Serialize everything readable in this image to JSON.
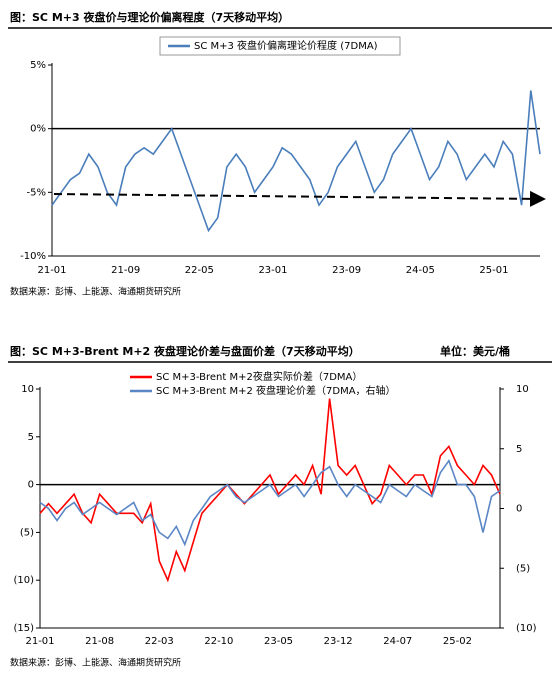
{
  "chart_data": [
    {
      "type": "line",
      "title": "图：SC M+3 夜盘价与理论价偏离程度（7天移动平均）",
      "source": "数据来源：彭博、上能源、海通期货研究所",
      "categories": [
        "21-01",
        null,
        null,
        null,
        null,
        null,
        null,
        null,
        "21-09",
        null,
        null,
        null,
        null,
        null,
        null,
        null,
        "22-05",
        null,
        null,
        null,
        null,
        null,
        null,
        null,
        "23-01",
        null,
        null,
        null,
        null,
        null,
        null,
        null,
        "23-09",
        null,
        null,
        null,
        null,
        null,
        null,
        null,
        "24-05",
        null,
        null,
        null,
        null,
        null,
        null,
        null,
        "25-01",
        null,
        null,
        null,
        null,
        null
      ],
      "ylim": [
        -10,
        5
      ],
      "yticks": [
        {
          "value": 5,
          "label": "5%"
        },
        {
          "value": 0,
          "label": "0%"
        },
        {
          "value": -5,
          "label": "-5%"
        },
        {
          "value": -10,
          "label": "-10%"
        }
      ],
      "series": [
        {
          "name": "SC M+3 夜盘价偏离理论价程度 (7DMA)",
          "color": "#4a7ebb",
          "values": [
            -6,
            -5,
            -4,
            -3.5,
            -2,
            -3,
            -5,
            -6,
            -3,
            -2,
            -1.5,
            -2,
            -1,
            0,
            -2,
            -4,
            -6,
            -8,
            -7,
            -3,
            -2,
            -3,
            -5,
            -4,
            -3,
            -1.5,
            -2,
            -3,
            -4,
            -6,
            -5,
            -3,
            -2,
            -1,
            -3,
            -5,
            -4,
            -2,
            -1,
            0,
            -2,
            -4,
            -3,
            -1,
            -2,
            -4,
            -3,
            -2,
            -3,
            -1,
            -2,
            -6,
            3,
            -2
          ]
        }
      ]
    },
    {
      "type": "line",
      "title": "图：SC M+3-Brent M+2 夜盘理论价差与盘面价差（7天移动平均）",
      "unit": "单位：美元/桶",
      "source": "数据来源：彭博、上能源、海通期货研究所",
      "categories": [
        "21-01",
        null,
        null,
        null,
        null,
        null,
        null,
        "21-08",
        null,
        null,
        null,
        null,
        null,
        null,
        "22-03",
        null,
        null,
        null,
        null,
        null,
        null,
        "22-10",
        null,
        null,
        null,
        null,
        null,
        null,
        "23-05",
        null,
        null,
        null,
        null,
        null,
        null,
        "23-12",
        null,
        null,
        null,
        null,
        null,
        null,
        "24-07",
        null,
        null,
        null,
        null,
        null,
        null,
        "25-02",
        null,
        null,
        null,
        null,
        null
      ],
      "ylim": [
        -15,
        10
      ],
      "yticks": [
        {
          "value": 10,
          "label": "10"
        },
        {
          "value": 5,
          "label": "5"
        },
        {
          "value": 0,
          "label": "0"
        },
        {
          "value": -5,
          "label": "(5)"
        },
        {
          "value": -10,
          "label": "(10)"
        },
        {
          "value": -15,
          "label": "(15)"
        }
      ],
      "y2lim": [
        -10,
        10
      ],
      "y2ticks": [
        {
          "value": 10,
          "label": "10"
        },
        {
          "value": 5,
          "label": "5"
        },
        {
          "value": 0,
          "label": "0"
        },
        {
          "value": -5,
          "label": "(5)"
        },
        {
          "value": -10,
          "label": "(10)"
        }
      ],
      "series": [
        {
          "name": "SC M+3-Brent M+2夜盘实际价差（7DMA）",
          "color": "#ff0000",
          "values": [
            -3,
            -2,
            -3,
            -2,
            -1,
            -3,
            -4,
            -1,
            -2,
            -3,
            -3,
            -3,
            -4,
            -2,
            -8,
            -10,
            -7,
            -9,
            -6,
            -3,
            -2,
            -1,
            0,
            -1,
            -2,
            -1,
            0,
            1,
            -1,
            0,
            1,
            0,
            2,
            -1,
            9,
            2,
            1,
            2,
            0,
            -2,
            -1,
            2,
            1,
            0,
            1,
            1,
            -1,
            3,
            4,
            2,
            1,
            0,
            2,
            1,
            -1
          ]
        },
        {
          "name": "SC M+3-Brent M+2 夜盘理论价差（7DMA，右轴）",
          "color": "#5b86c5",
          "axis": "y2",
          "values": [
            0.5,
            0,
            -1,
            0,
            0.5,
            -0.5,
            0,
            0.5,
            0,
            -0.5,
            0,
            0.5,
            -1,
            -0.5,
            -2,
            -2.5,
            -1.5,
            -3,
            -1,
            0,
            1,
            1.5,
            2,
            1,
            0.5,
            1,
            1.5,
            2,
            1,
            1.5,
            2,
            1,
            2,
            3,
            3.5,
            2,
            1,
            2,
            1.5,
            1,
            0.5,
            2,
            1.5,
            1,
            2,
            1.5,
            1,
            3,
            4,
            2,
            2,
            1,
            -2,
            1,
            1.5
          ]
        }
      ]
    }
  ]
}
